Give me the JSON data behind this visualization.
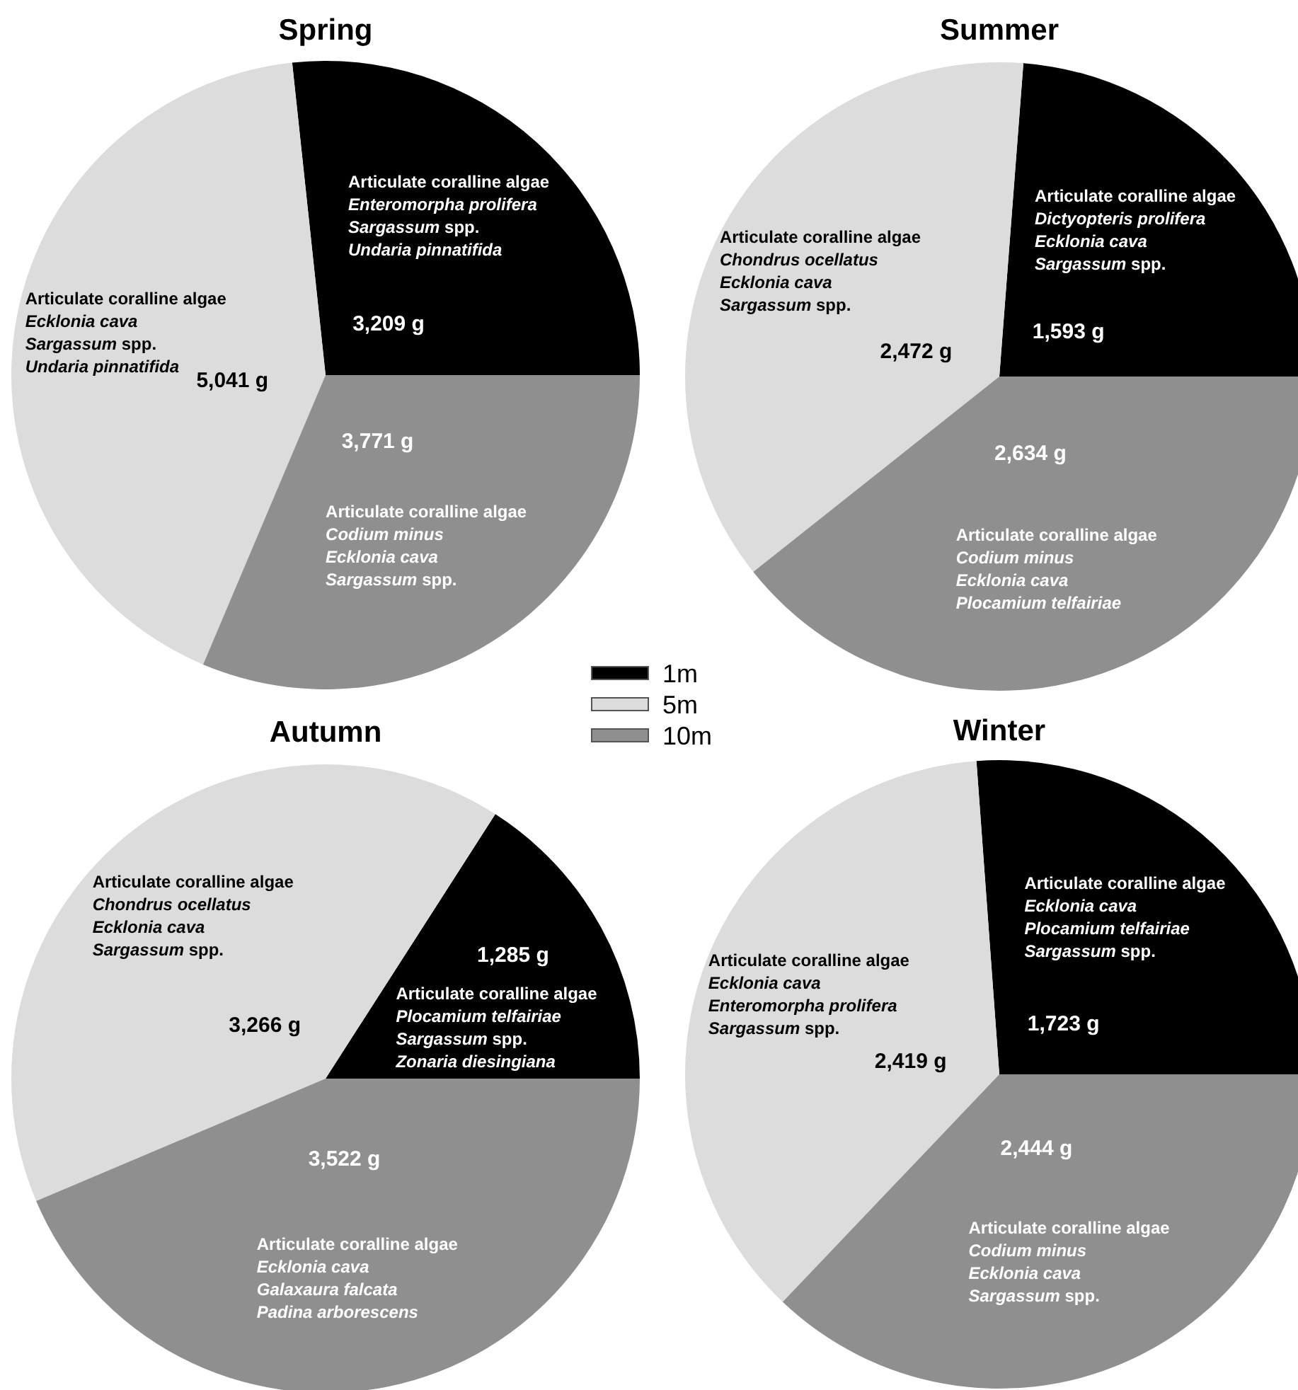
{
  "chart_data": [
    {
      "type": "pie",
      "title": "Spring",
      "categories": [
        "1m",
        "5m",
        "10m"
      ],
      "values": [
        3209,
        5041,
        3771
      ],
      "value_labels": [
        "3,209 g",
        "5,041 g",
        "3,771 g"
      ],
      "colors": [
        "#000000",
        "#dcdcdc",
        "#8f8f8f"
      ],
      "legend": "bottom right",
      "annotations": [
        "Articulate coralline algae",
        "Enteromorpha prolifera",
        "Sargassum spp.",
        "Undaria pinnatifida",
        "Articulate coralline algae",
        "Ecklonia cava",
        "Sargassum spp.",
        "Undaria pinnatifida",
        "Articulate coralline algae",
        "Codium minus",
        "Ecklonia cava",
        "Sargassum spp."
      ]
    },
    {
      "type": "pie",
      "title": "Summer",
      "categories": [
        null,
        null,
        null
      ],
      "values": [
        1593,
        2472,
        2634
      ],
      "value_labels": [
        "1,593 g",
        "2,472 g",
        "2,634 g"
      ],
      "colors": [
        "#000000",
        "#dcdcdc",
        "#8f8f8f"
      ],
      "annotations": [
        "Articulate coralline algae",
        "Dictyopteris prolifera",
        "Ecklonia cava",
        "Sargassum spp.",
        "Articulate coralline algae",
        "Chondrus ocellatus",
        "Ecklonia cava",
        "Sargassum spp.",
        "Articulate coralline algae",
        "Codium minus",
        "Ecklonia cava",
        "Plocamium telfairiae"
      ]
    },
    {
      "type": "pie",
      "title": "Autumn",
      "categories": [
        null,
        null,
        null
      ],
      "values": [
        1285,
        3266,
        3522
      ],
      "value_labels": [
        "1,285 g",
        "3,266 g",
        "3,522 g"
      ],
      "colors": [
        "#000000",
        "#dcdcdc",
        "#8f8f8f"
      ],
      "annotations": [
        "Articulate coralline algae",
        "Plocamium telfairiae",
        "Sargassum spp.",
        "Zonaria diesingiana",
        "Articulate coralline algae",
        "Chondrus ocellatus",
        "Ecklonia cava",
        "Sargassum spp.",
        "Articulate coralline algae",
        "Ecklonia cava",
        "Galaxaura falcata",
        "Padina arborescens"
      ]
    },
    {
      "type": "pie",
      "title": "Winter",
      "categories": [
        null,
        null,
        null
      ],
      "values": [
        1723,
        2419,
        2444
      ],
      "value_labels": [
        "1,723 g",
        "2,419 g",
        "2,444 g"
      ],
      "colors": [
        "#000000",
        "#dcdcdc",
        "#8f8f8f"
      ],
      "annotations": [
        "Articulate coralline algae",
        "Ecklonia cava",
        "Plocamium telfairiae",
        "Sargassum spp.",
        "Articulate coralline algae",
        "Ecklonia cava",
        "Enteromorpha prolifera",
        "Sargassum spp.",
        "Articulate coralline algae",
        "Codium minus",
        "Ecklonia cava",
        "Sargassum spp."
      ]
    }
  ]
}
